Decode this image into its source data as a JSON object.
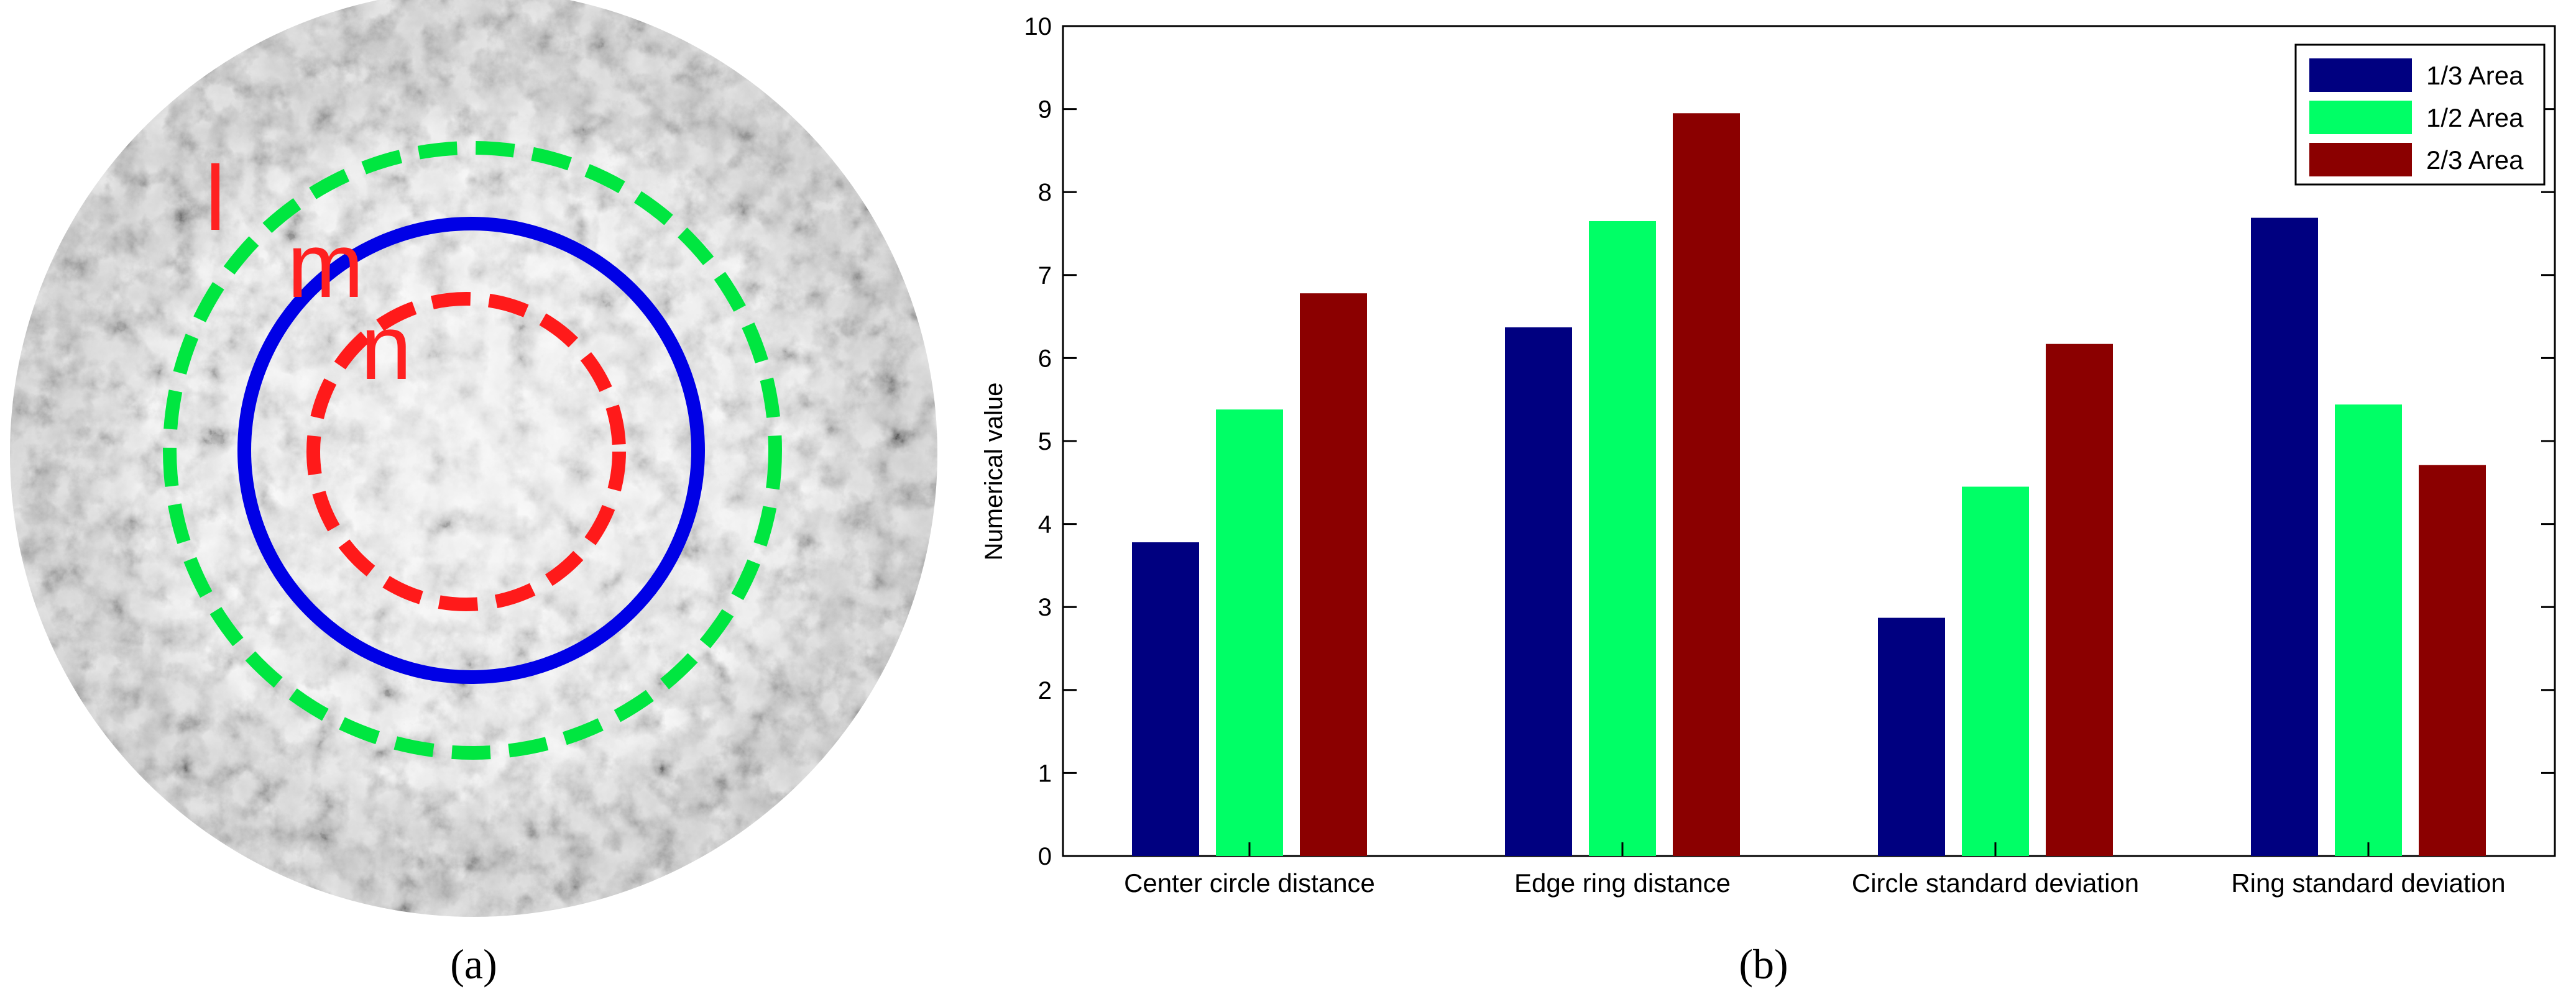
{
  "panel_a": {
    "caption": "(a)",
    "ring_labels": [
      "l",
      "m",
      "n"
    ],
    "colors": {
      "outer_ring": "#00e640",
      "middle_ring": "#0000e6",
      "inner_ring": "#ff1a1a",
      "labels": "#ff2020"
    }
  },
  "panel_b": {
    "caption": "(b)",
    "colors": {
      "axis": "#000000"
    }
  },
  "chart_data": {
    "type": "bar",
    "categories": [
      "Center circle distance",
      "Edge ring distance",
      "Circle standard deviation",
      "Ring standard deviation"
    ],
    "series": [
      {
        "name": "1/3 Area",
        "color": "#000080",
        "values": [
          3.78,
          6.37,
          2.87,
          7.69
        ]
      },
      {
        "name": "1/2 Area",
        "color": "#00ff66",
        "values": [
          5.38,
          7.65,
          4.45,
          5.44
        ]
      },
      {
        "name": "2/3 Area",
        "color": "#8b0000",
        "values": [
          6.78,
          8.95,
          6.17,
          4.71
        ]
      }
    ],
    "title": "",
    "xlabel": "",
    "ylabel": "Numerical value",
    "ylim": [
      0,
      10
    ],
    "yticks": [
      "0",
      "1",
      "2",
      "3",
      "4",
      "5",
      "6",
      "7",
      "8",
      "9",
      "10"
    ],
    "grid": false,
    "legend_position": "top-right"
  }
}
